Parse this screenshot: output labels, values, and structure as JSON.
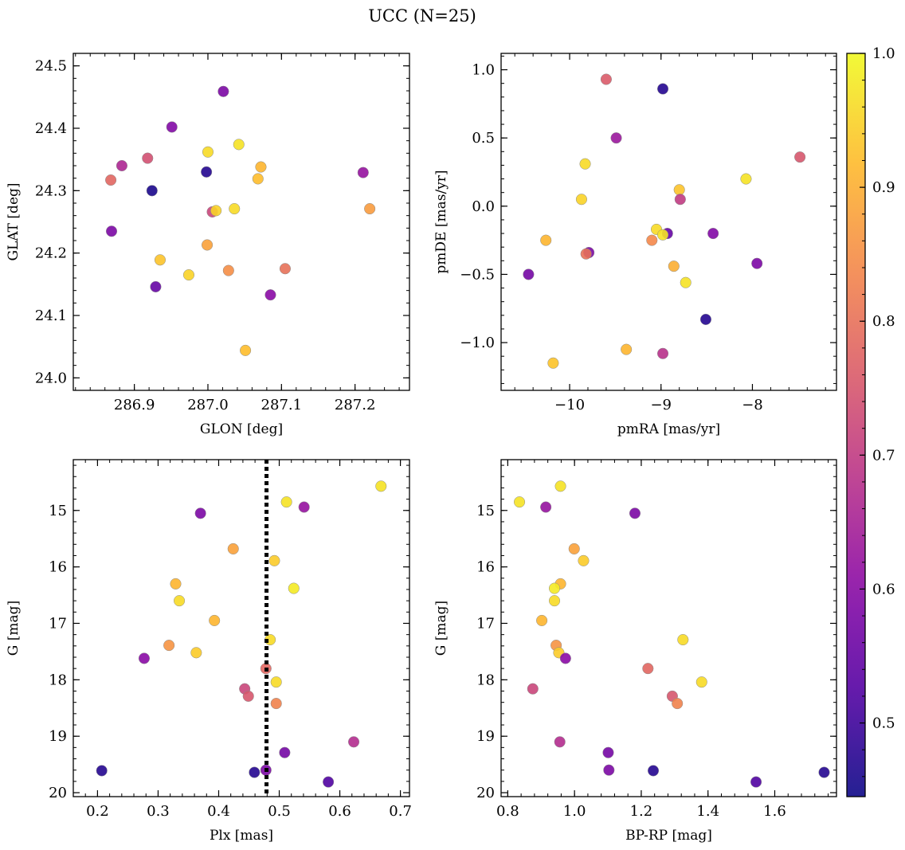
{
  "figure": {
    "title": "UCC (N=25)"
  },
  "colorbar": {
    "cmap": "plasma",
    "vmin": 0.445,
    "vmax": 1.0,
    "ticks": [
      0.5,
      0.6,
      0.7,
      0.8,
      0.9,
      1.0
    ],
    "tick_labels": [
      "0.5",
      "0.6",
      "0.7",
      "0.8",
      "0.9",
      "1.0"
    ]
  },
  "chart_data": [
    {
      "type": "scatter",
      "xlabel": "GLON [deg]",
      "ylabel": "GLAT [deg]",
      "xlim": [
        286.817,
        287.274
      ],
      "ylim": [
        23.98,
        24.52
      ],
      "y_inverted": false,
      "xticks": [
        286.9,
        287.0,
        287.1,
        287.2
      ],
      "xtick_labels": [
        "286.9",
        "287.0",
        "287.1",
        "287.2"
      ],
      "yticks": [
        24.0,
        24.1,
        24.2,
        24.3,
        24.4,
        24.5
      ],
      "ytick_labels": [
        "24.0",
        "24.1",
        "24.2",
        "24.3",
        "24.4",
        "24.5"
      ],
      "x_minor": 0.02,
      "y_minor": 0.02,
      "points": [
        {
          "x": 287.021,
          "y": 24.459,
          "c": 0.58
        },
        {
          "x": 286.951,
          "y": 24.402,
          "c": 0.59
        },
        {
          "x": 287.0,
          "y": 24.362,
          "c": 0.96
        },
        {
          "x": 287.042,
          "y": 24.374,
          "c": 0.97
        },
        {
          "x": 286.883,
          "y": 24.34,
          "c": 0.66
        },
        {
          "x": 286.918,
          "y": 24.352,
          "c": 0.74
        },
        {
          "x": 286.998,
          "y": 24.33,
          "c": 0.47
        },
        {
          "x": 287.072,
          "y": 24.338,
          "c": 0.91
        },
        {
          "x": 287.211,
          "y": 24.329,
          "c": 0.62
        },
        {
          "x": 286.868,
          "y": 24.317,
          "c": 0.78
        },
        {
          "x": 287.068,
          "y": 24.319,
          "c": 0.92
        },
        {
          "x": 286.924,
          "y": 24.3,
          "c": 0.46
        },
        {
          "x": 287.006,
          "y": 24.266,
          "c": 0.72
        },
        {
          "x": 287.011,
          "y": 24.268,
          "c": 0.95
        },
        {
          "x": 287.036,
          "y": 24.271,
          "c": 0.96
        },
        {
          "x": 287.22,
          "y": 24.271,
          "c": 0.87
        },
        {
          "x": 286.869,
          "y": 24.235,
          "c": 0.58
        },
        {
          "x": 286.999,
          "y": 24.213,
          "c": 0.88
        },
        {
          "x": 286.935,
          "y": 24.189,
          "c": 0.93
        },
        {
          "x": 287.028,
          "y": 24.172,
          "c": 0.85
        },
        {
          "x": 287.105,
          "y": 24.175,
          "c": 0.8
        },
        {
          "x": 286.974,
          "y": 24.165,
          "c": 0.95
        },
        {
          "x": 286.929,
          "y": 24.146,
          "c": 0.55
        },
        {
          "x": 287.085,
          "y": 24.133,
          "c": 0.6
        },
        {
          "x": 287.051,
          "y": 24.044,
          "c": 0.92
        }
      ]
    },
    {
      "type": "scatter",
      "xlabel": "pmRA [mas/yr]",
      "ylabel": "pmDE [mas/yr]",
      "xlim": [
        -10.75,
        -7.08
      ],
      "ylim": [
        -1.35,
        1.12
      ],
      "y_inverted": false,
      "xticks": [
        -10,
        -9,
        -8
      ],
      "xtick_labels": [
        "−10",
        "−9",
        "−8"
      ],
      "yticks": [
        -1.0,
        -0.5,
        0.0,
        0.5,
        1.0
      ],
      "ytick_labels": [
        "−1.0",
        "−0.5",
        "0.0",
        "0.5",
        "1.0"
      ],
      "x_minor": 0.2,
      "y_minor": 0.1,
      "points": [
        {
          "x": -8.98,
          "y": 0.86,
          "c": 0.47
        },
        {
          "x": -9.6,
          "y": 0.93,
          "c": 0.76
        },
        {
          "x": -9.49,
          "y": 0.5,
          "c": 0.63
        },
        {
          "x": -7.48,
          "y": 0.36,
          "c": 0.75
        },
        {
          "x": -9.83,
          "y": 0.31,
          "c": 0.96
        },
        {
          "x": -8.07,
          "y": 0.2,
          "c": 0.97
        },
        {
          "x": -8.8,
          "y": 0.12,
          "c": 0.93
        },
        {
          "x": -9.87,
          "y": 0.05,
          "c": 0.95
        },
        {
          "x": -8.79,
          "y": 0.05,
          "c": 0.7
        },
        {
          "x": -9.05,
          "y": -0.17,
          "c": 0.96
        },
        {
          "x": -8.93,
          "y": -0.2,
          "c": 0.55
        },
        {
          "x": -8.98,
          "y": -0.21,
          "c": 0.97
        },
        {
          "x": -8.43,
          "y": -0.2,
          "c": 0.59
        },
        {
          "x": -10.26,
          "y": -0.25,
          "c": 0.91
        },
        {
          "x": -9.1,
          "y": -0.25,
          "c": 0.84
        },
        {
          "x": -9.79,
          "y": -0.34,
          "c": 0.58
        },
        {
          "x": -9.82,
          "y": -0.35,
          "c": 0.8
        },
        {
          "x": -8.86,
          "y": -0.44,
          "c": 0.9
        },
        {
          "x": -7.95,
          "y": -0.42,
          "c": 0.58
        },
        {
          "x": -10.45,
          "y": -0.5,
          "c": 0.57
        },
        {
          "x": -8.73,
          "y": -0.56,
          "c": 0.97
        },
        {
          "x": -8.51,
          "y": -0.83,
          "c": 0.47
        },
        {
          "x": -9.38,
          "y": -1.05,
          "c": 0.91
        },
        {
          "x": -8.98,
          "y": -1.08,
          "c": 0.68
        },
        {
          "x": -10.18,
          "y": -1.15,
          "c": 0.93
        }
      ]
    },
    {
      "type": "scatter",
      "xlabel": "Plx [mas]",
      "ylabel": "G [mag]",
      "xlim": [
        0.16,
        0.715
      ],
      "ylim": [
        20.07,
        14.1
      ],
      "y_inverted": true,
      "xticks": [
        0.2,
        0.3,
        0.4,
        0.5,
        0.6,
        0.7
      ],
      "xtick_labels": [
        "0.2",
        "0.3",
        "0.4",
        "0.5",
        "0.6",
        "0.7"
      ],
      "yticks": [
        15,
        16,
        17,
        18,
        19,
        20
      ],
      "ytick_labels": [
        "15",
        "16",
        "17",
        "18",
        "19",
        "20"
      ],
      "x_minor": 0.02,
      "y_minor": 0.2,
      "vline": {
        "x": 0.479,
        "style": "dotted",
        "color": "#000000"
      },
      "points": [
        {
          "x": 0.668,
          "y": 14.57,
          "c": 0.97
        },
        {
          "x": 0.512,
          "y": 14.85,
          "c": 0.97
        },
        {
          "x": 0.541,
          "y": 14.94,
          "c": 0.62
        },
        {
          "x": 0.37,
          "y": 15.05,
          "c": 0.58
        },
        {
          "x": 0.424,
          "y": 15.68,
          "c": 0.88
        },
        {
          "x": 0.492,
          "y": 15.89,
          "c": 0.94
        },
        {
          "x": 0.329,
          "y": 16.3,
          "c": 0.91
        },
        {
          "x": 0.524,
          "y": 16.38,
          "c": 0.98
        },
        {
          "x": 0.335,
          "y": 16.6,
          "c": 0.96
        },
        {
          "x": 0.393,
          "y": 16.95,
          "c": 0.91
        },
        {
          "x": 0.485,
          "y": 17.29,
          "c": 0.96
        },
        {
          "x": 0.318,
          "y": 17.39,
          "c": 0.86
        },
        {
          "x": 0.363,
          "y": 17.52,
          "c": 0.94
        },
        {
          "x": 0.277,
          "y": 17.62,
          "c": 0.6
        },
        {
          "x": 0.478,
          "y": 17.8,
          "c": 0.78
        },
        {
          "x": 0.495,
          "y": 18.04,
          "c": 0.96
        },
        {
          "x": 0.443,
          "y": 18.16,
          "c": 0.72
        },
        {
          "x": 0.449,
          "y": 18.29,
          "c": 0.75
        },
        {
          "x": 0.495,
          "y": 18.42,
          "c": 0.83
        },
        {
          "x": 0.623,
          "y": 19.1,
          "c": 0.67
        },
        {
          "x": 0.509,
          "y": 19.29,
          "c": 0.57
        },
        {
          "x": 0.207,
          "y": 19.61,
          "c": 0.47
        },
        {
          "x": 0.478,
          "y": 19.6,
          "c": 0.58
        },
        {
          "x": 0.459,
          "y": 19.64,
          "c": 0.47
        },
        {
          "x": 0.581,
          "y": 19.81,
          "c": 0.52
        }
      ]
    },
    {
      "type": "scatter",
      "xlabel": "BP-RP [mag]",
      "ylabel": "G [mag]",
      "xlim": [
        0.78,
        1.785
      ],
      "ylim": [
        20.07,
        14.1
      ],
      "y_inverted": true,
      "xticks": [
        0.8,
        1.0,
        1.2,
        1.4,
        1.6
      ],
      "xtick_labels": [
        "0.8",
        "1.0",
        "1.2",
        "1.4",
        "1.6"
      ],
      "yticks": [
        15,
        16,
        17,
        18,
        19,
        20
      ],
      "ytick_labels": [
        "15",
        "16",
        "17",
        "18",
        "19",
        "20"
      ],
      "x_minor": 0.04,
      "y_minor": 0.2,
      "points": [
        {
          "x": 0.835,
          "y": 14.85,
          "c": 0.97
        },
        {
          "x": 0.958,
          "y": 14.57,
          "c": 0.97
        },
        {
          "x": 0.914,
          "y": 14.94,
          "c": 0.62
        },
        {
          "x": 1.181,
          "y": 15.05,
          "c": 0.58
        },
        {
          "x": 0.999,
          "y": 15.68,
          "c": 0.88
        },
        {
          "x": 1.027,
          "y": 15.89,
          "c": 0.94
        },
        {
          "x": 0.958,
          "y": 16.3,
          "c": 0.91
        },
        {
          "x": 0.94,
          "y": 16.38,
          "c": 0.98
        },
        {
          "x": 0.94,
          "y": 16.6,
          "c": 0.96
        },
        {
          "x": 0.902,
          "y": 16.95,
          "c": 0.91
        },
        {
          "x": 1.325,
          "y": 17.29,
          "c": 0.96
        },
        {
          "x": 0.945,
          "y": 17.39,
          "c": 0.86
        },
        {
          "x": 0.953,
          "y": 17.52,
          "c": 0.94
        },
        {
          "x": 0.973,
          "y": 17.62,
          "c": 0.6
        },
        {
          "x": 1.22,
          "y": 17.8,
          "c": 0.78
        },
        {
          "x": 1.381,
          "y": 18.04,
          "c": 0.96
        },
        {
          "x": 0.875,
          "y": 18.16,
          "c": 0.72
        },
        {
          "x": 1.293,
          "y": 18.29,
          "c": 0.75
        },
        {
          "x": 1.308,
          "y": 18.42,
          "c": 0.83
        },
        {
          "x": 0.956,
          "y": 19.1,
          "c": 0.67
        },
        {
          "x": 1.101,
          "y": 19.29,
          "c": 0.57
        },
        {
          "x": 1.103,
          "y": 19.6,
          "c": 0.58
        },
        {
          "x": 1.236,
          "y": 19.61,
          "c": 0.47
        },
        {
          "x": 1.748,
          "y": 19.64,
          "c": 0.47
        },
        {
          "x": 1.544,
          "y": 19.81,
          "c": 0.52
        }
      ]
    }
  ]
}
